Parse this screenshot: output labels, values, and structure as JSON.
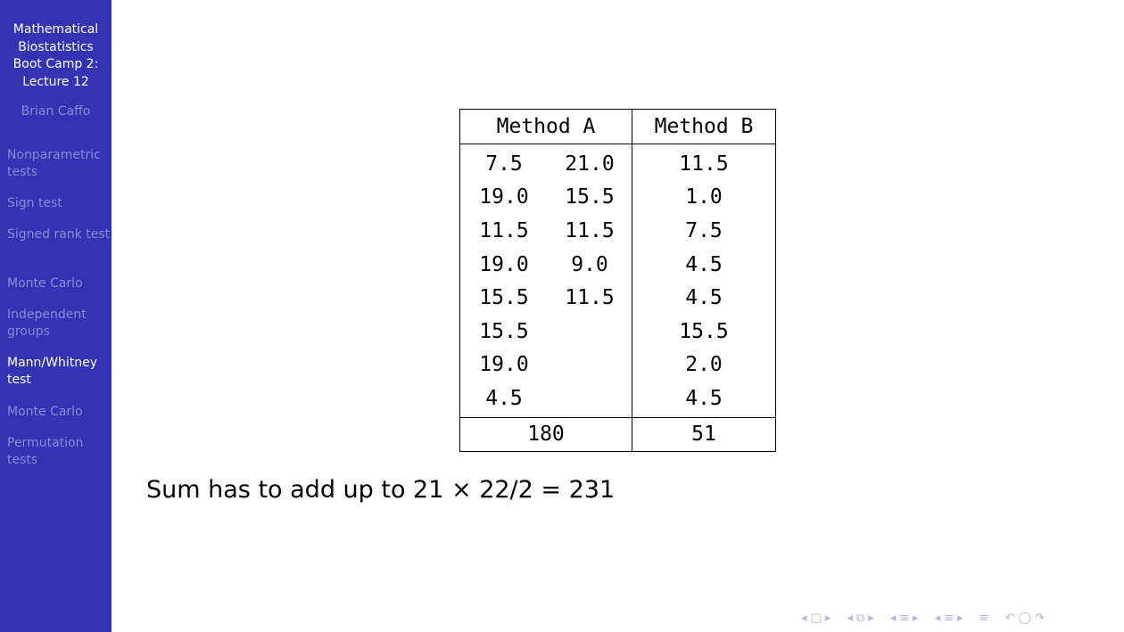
{
  "sidebar": {
    "title_lines": [
      "Mathematical",
      "Biostatistics",
      "Boot Camp 2:",
      "Lecture 12"
    ],
    "author": "Brian Caffo",
    "items": [
      {
        "label": "Nonparametric tests"
      },
      {
        "label": "Sign test"
      },
      {
        "label": "Signed rank test"
      },
      {
        "label": "Monte Carlo"
      },
      {
        "label": "Independent groups"
      },
      {
        "label": "Mann/Whitney test"
      },
      {
        "label": "Monte Carlo"
      },
      {
        "label": "Permutation tests"
      }
    ],
    "current_item": "Mann/Whitney test"
  },
  "table": {
    "headers": [
      "Method A",
      "Method B"
    ],
    "method_a_rows": [
      [
        "7.5",
        "21.0"
      ],
      [
        "19.0",
        "15.5"
      ],
      [
        "11.5",
        "11.5"
      ],
      [
        "19.0",
        "9.0"
      ],
      [
        "15.5",
        "11.5"
      ],
      [
        "15.5",
        ""
      ],
      [
        "19.0",
        ""
      ],
      [
        "4.5",
        ""
      ]
    ],
    "method_b_rows": [
      "11.5",
      "1.0",
      "7.5",
      "4.5",
      "4.5",
      "15.5",
      "2.0",
      "4.5"
    ],
    "sums": [
      "180",
      "51"
    ]
  },
  "note": {
    "text": "Sum has to add up to 21 × 22/2 = 231"
  },
  "nav_bar": {
    "icons": [
      "◂",
      "□",
      "▸",
      "◂",
      "⧉",
      "▸",
      "◂",
      "≡",
      "▸",
      "◂",
      "≡",
      "▸",
      "≡",
      "↶",
      "◯",
      "↷"
    ]
  },
  "colors": {
    "sidebar_bg": "#3333b3",
    "sidebar_text_active": "#ffffff",
    "sidebar_text_inactive": "#8a8ad6"
  }
}
